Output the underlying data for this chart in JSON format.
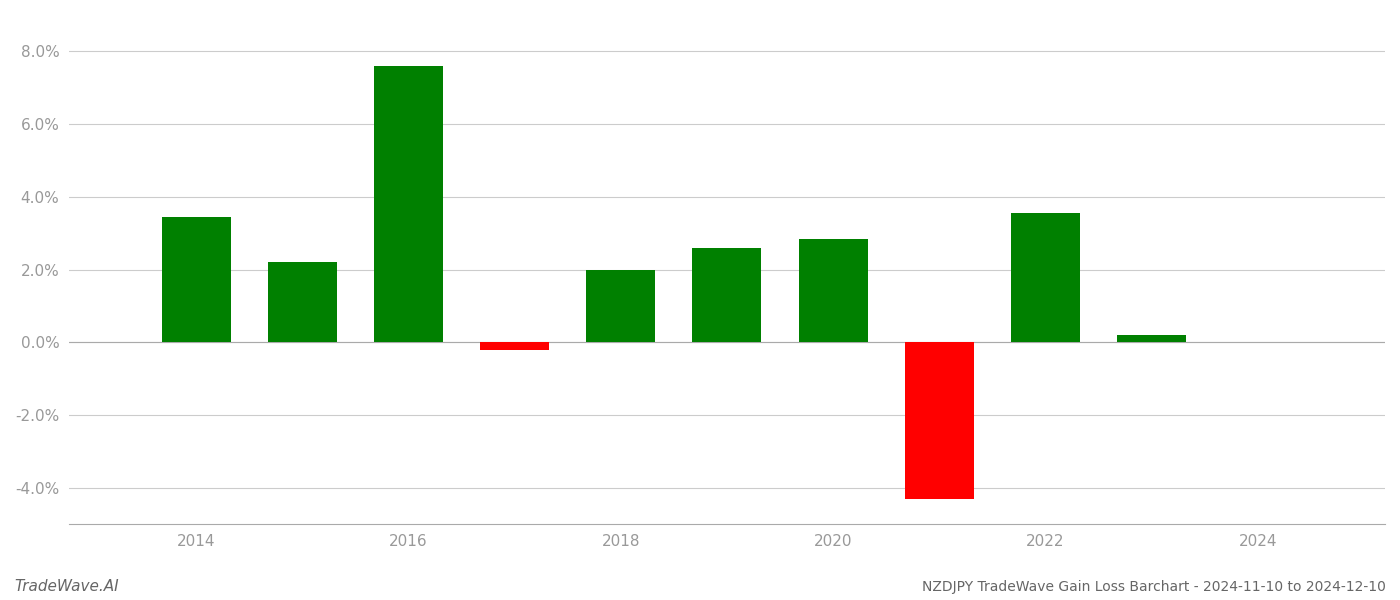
{
  "years": [
    2014,
    2015,
    2016,
    2017,
    2018,
    2019,
    2020,
    2021,
    2022,
    2023
  ],
  "values": [
    3.45,
    2.2,
    7.6,
    -0.2,
    2.0,
    2.6,
    2.85,
    -4.3,
    3.55,
    0.2
  ],
  "colors": [
    "#008000",
    "#008000",
    "#008000",
    "#ff0000",
    "#008000",
    "#008000",
    "#008000",
    "#ff0000",
    "#008000",
    "#008000"
  ],
  "title": "NZDJPY TradeWave Gain Loss Barchart - 2024-11-10 to 2024-12-10",
  "footer_left": "TradeWave.AI",
  "ylim": [
    -5.0,
    9.0
  ],
  "yticks": [
    -4.0,
    -2.0,
    0.0,
    2.0,
    4.0,
    6.0,
    8.0
  ],
  "xlim": [
    2012.8,
    2025.2
  ],
  "xticks": [
    2014,
    2016,
    2018,
    2020,
    2022,
    2024
  ],
  "background_color": "#ffffff",
  "grid_color": "#cccccc",
  "bar_width": 0.65
}
